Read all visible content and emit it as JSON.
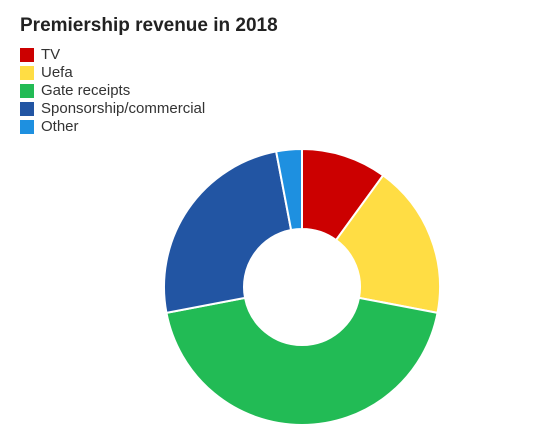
{
  "chart_data": {
    "type": "pie",
    "variant": "donut",
    "title": "Premiership revenue in 2018",
    "legend_position": "top-left",
    "categories": [
      "TV",
      "Uefa",
      "Gate receipts",
      "Sponsorship/commercial",
      "Other"
    ],
    "values": [
      10,
      18,
      44,
      25,
      3
    ],
    "colors": [
      "#cc0000",
      "#ffdd44",
      "#22bb55",
      "#2255a3",
      "#1e90e0"
    ]
  }
}
